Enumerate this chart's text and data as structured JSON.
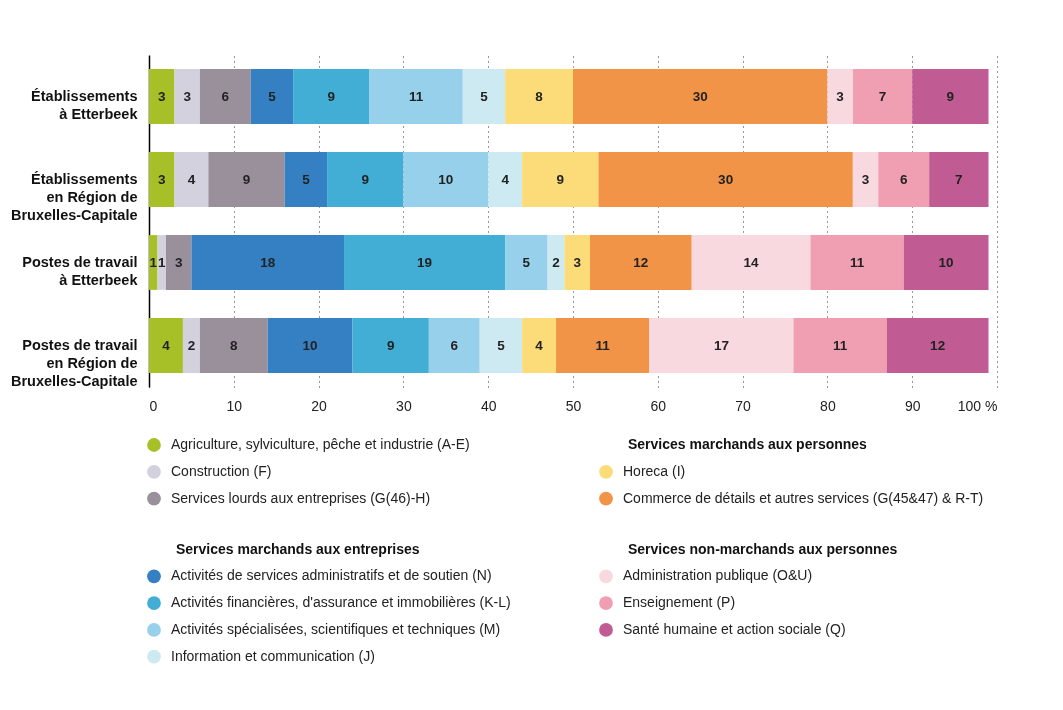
{
  "chart_data": {
    "type": "bar",
    "orientation": "horizontal",
    "stacked": true,
    "data_labels": true,
    "grid": "x",
    "legend": "bottom",
    "categories": [
      "Établissements\nà Etterbeek",
      "Établissements\nen Région de\nBruxelles-Capitale",
      "Postes de travail\nà Etterbeek",
      "Postes de travail\nen Région de\nBruxelles-Capitale"
    ],
    "xlim": [
      0,
      100
    ],
    "xticks": [
      0,
      10,
      20,
      30,
      40,
      50,
      60,
      70,
      80,
      90,
      {
        "value": 100,
        "label": "100 %"
      }
    ],
    "annotations": [
      "Services marchands aux entreprises",
      "Services marchands aux personnes",
      "Services non-marchands aux personnes"
    ],
    "series": [
      {
        "name": "Agriculture, sylviculture, pêche et industrie (A-E)",
        "color": "#a8c027",
        "values": [
          3,
          3,
          1,
          4
        ]
      },
      {
        "name": "Construction (F)",
        "color": "#d3d1de",
        "values": [
          3,
          4,
          1,
          2
        ]
      },
      {
        "name": "Services lourds aux entreprises (G(46)-H)",
        "color": "#9a909c",
        "values": [
          6,
          9,
          3,
          8
        ]
      },
      {
        "name": "Activités de services administratifs et de soutien (N)",
        "color": "#3580c3",
        "values": [
          5,
          5,
          18,
          10
        ]
      },
      {
        "name": "Activités financières, d'assurance et immobilières (K-L)",
        "color": "#42aed6",
        "values": [
          9,
          9,
          19,
          9
        ]
      },
      {
        "name": "Activités spécialisées, scientifiques et techniques (M)",
        "color": "#96d0ea",
        "values": [
          11,
          10,
          5,
          6
        ]
      },
      {
        "name": "Information et communication (J)",
        "color": "#cde9f1",
        "values": [
          5,
          4,
          2,
          5
        ]
      },
      {
        "name": "Horeca (I)",
        "color": "#fcdc78",
        "values": [
          8,
          9,
          3,
          4
        ]
      },
      {
        "name": "Commerce de détails et autres services (G(45&47) & R-T)",
        "color": "#f29448",
        "values": [
          30,
          30,
          12,
          11
        ]
      },
      {
        "name": "Administration publique (O&U)",
        "color": "#f9d9e0",
        "values": [
          3,
          3,
          14,
          17
        ]
      },
      {
        "name": "Enseignement (P)",
        "color": "#f09fb2",
        "values": [
          7,
          6,
          11,
          11
        ]
      },
      {
        "name": "Santé humaine et action sociale (Q)",
        "color": "#c05c93",
        "values": [
          9,
          7,
          10,
          12
        ]
      }
    ]
  }
}
